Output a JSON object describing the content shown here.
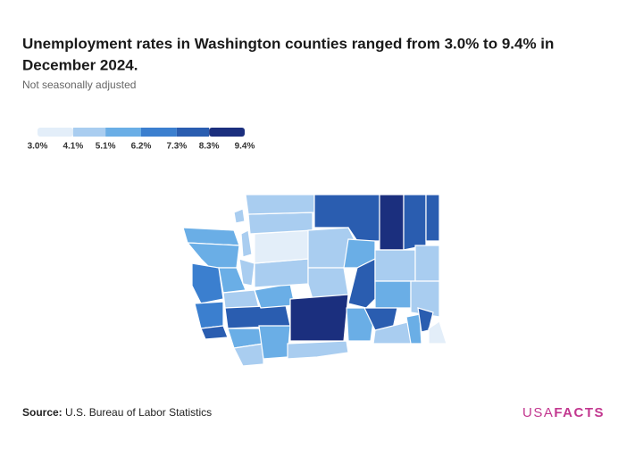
{
  "header": {
    "title_lines": [
      "Unemployment rates in Washington counties ranged from 3.0% to 9.4% in",
      "December 2024."
    ],
    "subtitle": "Not seasonally adjusted"
  },
  "legend": {
    "stops": [
      {
        "value": 3.0,
        "label": "3.0%"
      },
      {
        "value": 4.1,
        "label": "4.1%"
      },
      {
        "value": 5.1,
        "label": "5.1%"
      },
      {
        "value": 6.2,
        "label": "6.2%"
      },
      {
        "value": 7.3,
        "label": "7.3%"
      },
      {
        "value": 8.3,
        "label": "8.3%"
      },
      {
        "value": 9.4,
        "label": "9.4%"
      }
    ],
    "colors": [
      "#e3eef9",
      "#a9cdf0",
      "#6aaee6",
      "#3b7fcf",
      "#2a5db0",
      "#1b2f7e"
    ]
  },
  "footer": {
    "source_label": "Source:",
    "source": "U.S. Bureau of Labor Statistics",
    "logo_light": "USA",
    "logo_bold": "FACTS"
  }
}
